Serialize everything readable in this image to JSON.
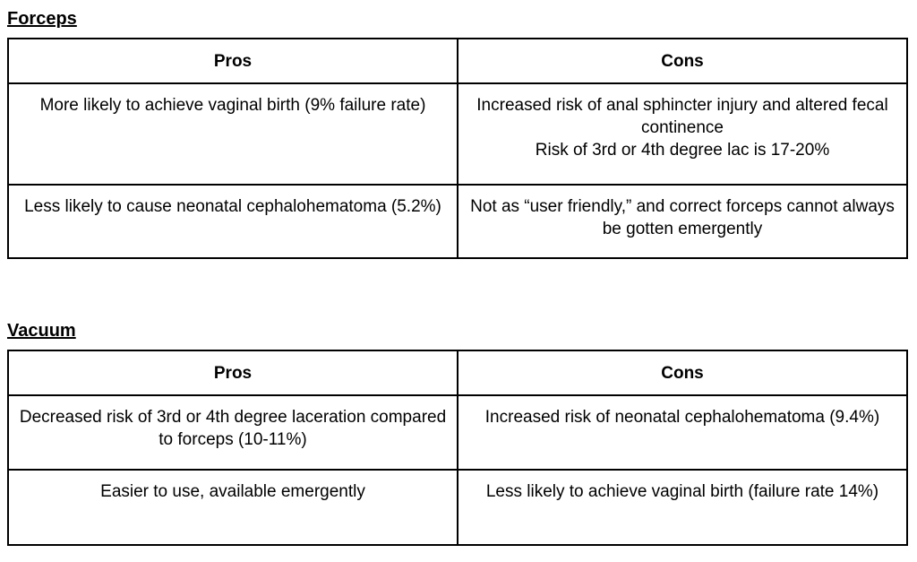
{
  "page": {
    "background_color": "#ffffff",
    "text_color": "#000000",
    "border_color": "#000000"
  },
  "sections": [
    {
      "heading": "Forceps",
      "columns": [
        "Pros",
        "Cons"
      ],
      "rows": [
        {
          "pros": [
            "More likely to achieve vaginal birth (9% failure rate)"
          ],
          "cons": [
            "Increased risk of anal sphincter injury and altered fecal continence",
            "Risk of 3rd or 4th degree lac is 17-20%"
          ]
        },
        {
          "pros": [
            "Less likely to cause neonatal cephalohematoma (5.2%)"
          ],
          "cons": [
            "Not as “user friendly,” and correct forceps cannot always be gotten emergently"
          ]
        }
      ]
    },
    {
      "heading": "Vacuum",
      "columns": [
        "Pros",
        "Cons"
      ],
      "rows": [
        {
          "pros": [
            "Decreased risk of 3rd or 4th degree laceration compared to forceps (10-11%)"
          ],
          "cons": [
            "Increased risk of neonatal cephalohematoma (9.4%)"
          ]
        },
        {
          "pros": [
            "Easier to use, available emergently"
          ],
          "cons": [
            "Less likely to achieve vaginal birth (failure rate 14%)"
          ]
        }
      ]
    }
  ]
}
